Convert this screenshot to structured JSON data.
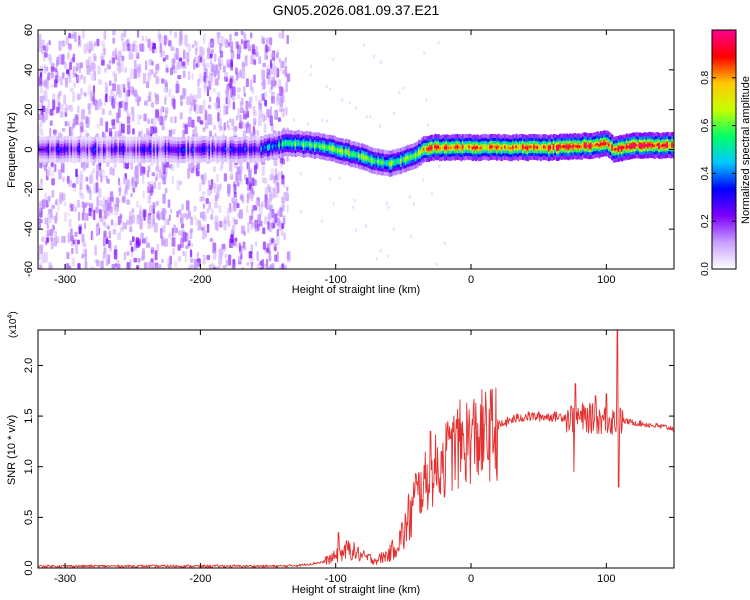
{
  "title": "GN05.2026.081.09.37.E21",
  "chart_data": [
    {
      "type": "heatmap",
      "name": "spectrogram",
      "xlabel": "Height of straight line (km)",
      "ylabel": "Frequency (Hz)",
      "xlim": [
        -320,
        150
      ],
      "ylim": [
        -60,
        60
      ],
      "x_ticks": [
        -300,
        -200,
        -100,
        0,
        100
      ],
      "x_tick_labels": [
        "-300",
        "-200",
        "-100",
        "0",
        "100"
      ],
      "y_ticks": [
        -60,
        -40,
        -20,
        0,
        20,
        40,
        60
      ],
      "y_tick_labels": [
        "-60",
        "-40",
        "-20",
        "0",
        "20",
        "40",
        "60"
      ],
      "colorbar": {
        "label": "Normalized spectral amplitude",
        "range": [
          0.0,
          1.0
        ],
        "ticks": [
          0.0,
          0.2,
          0.4,
          0.6,
          0.8
        ],
        "tick_labels": [
          "0.0",
          "0.2",
          "0.4",
          "0.6",
          "0.8"
        ],
        "colors": [
          "#ffffff",
          "#c8a0ff",
          "#7d00ff",
          "#0000ff",
          "#00c8ff",
          "#00ff64",
          "#c8ff00",
          "#ffc800",
          "#ff0000",
          "#ff0090"
        ]
      },
      "ridge": {
        "x": [
          -320,
          -260,
          -200,
          -160,
          -150,
          -140,
          -130,
          -115,
          -100,
          -90,
          -80,
          -70,
          -60,
          -50,
          -42,
          -35,
          -30,
          -20,
          0,
          30,
          60,
          90,
          100,
          105,
          120,
          150
        ],
        "frequency": [
          0,
          0,
          0,
          0,
          1,
          3,
          3,
          2,
          0,
          -2,
          -4,
          -6,
          -7,
          -5,
          -3,
          0,
          1,
          1,
          1,
          1,
          1,
          2,
          3,
          0,
          2,
          2
        ],
        "amplitude": [
          0.25,
          0.25,
          0.25,
          0.3,
          0.4,
          0.5,
          0.55,
          0.6,
          0.65,
          0.65,
          0.6,
          0.55,
          0.6,
          0.6,
          0.65,
          0.75,
          0.85,
          0.85,
          0.8,
          0.85,
          0.9,
          0.9,
          0.85,
          0.9,
          0.95,
          0.9
        ]
      },
      "noise_region_x": [
        -320,
        -140
      ]
    },
    {
      "type": "line",
      "name": "snr",
      "xlabel": "Height of straight line (km)",
      "ylabel": "SNR (10 * v/v)",
      "multiplier_label": "(x10",
      "multiplier_exponent": "4",
      "multiplier_close": ")",
      "color": "#e53030",
      "xlim": [
        -320,
        150
      ],
      "ylim": [
        0.0,
        2.35
      ],
      "x_ticks": [
        -300,
        -200,
        -100,
        0,
        100
      ],
      "x_tick_labels": [
        "-300",
        "-200",
        "-100",
        "0",
        "100"
      ],
      "y_ticks": [
        0.0,
        0.5,
        1.0,
        1.5,
        2.0
      ],
      "y_tick_labels": [
        "0.0",
        "0.5",
        "1.0",
        "1.5",
        "2.0"
      ],
      "envelope": {
        "x": [
          -320,
          -200,
          -140,
          -125,
          -110,
          -100,
          -90,
          -80,
          -70,
          -60,
          -50,
          -40,
          -30,
          -20,
          -10,
          0,
          10,
          20,
          30,
          40,
          60,
          80,
          100,
          115,
          130,
          150
        ],
        "y": [
          0.02,
          0.02,
          0.02,
          0.03,
          0.06,
          0.12,
          0.2,
          0.12,
          0.08,
          0.15,
          0.35,
          0.75,
          0.95,
          1.1,
          1.25,
          1.33,
          1.35,
          1.4,
          1.47,
          1.5,
          1.5,
          1.5,
          1.48,
          1.45,
          1.42,
          1.38
        ]
      },
      "spikes": [
        {
          "x": -98,
          "y": 0.35
        },
        {
          "x": -30,
          "y": 1.35
        },
        {
          "x": -22,
          "y": 1.15
        },
        {
          "x": -15,
          "y": 1.28
        },
        {
          "x": 10,
          "y": 1.42
        },
        {
          "x": 77,
          "y": 1.82
        },
        {
          "x": 76,
          "y": 0.95
        },
        {
          "x": 92,
          "y": 1.7
        },
        {
          "x": 100,
          "y": 1.72
        },
        {
          "x": 108,
          "y": 2.35
        },
        {
          "x": 109,
          "y": 0.8
        }
      ]
    }
  ]
}
